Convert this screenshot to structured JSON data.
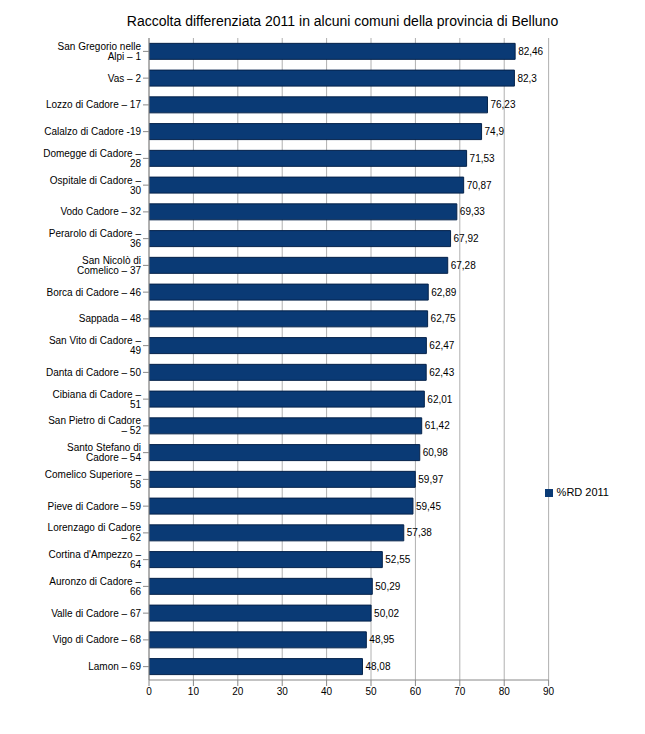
{
  "chart_data": {
    "type": "bar",
    "title": "Raccolta differenziata 2011 in alcuni comuni della provincia di Belluno",
    "orientation": "horizontal",
    "categories": [
      "San Gregorio nelle Alpi – 1",
      "Vas – 2",
      "Lozzo di Cadore – 17",
      "Calalzo di Cadore -19",
      "Domegge di Cadore – 28",
      "Ospitale di Cadore – 30",
      "Vodo Cadore – 32",
      "Perarolo di Cadore – 36",
      "San Nicolò di Comelico – 37",
      "Borca di Cadore – 46",
      "Sappada – 48",
      "San Vito di Cadore – 49",
      "Danta di Cadore – 50",
      "Cibiana di Cadore – 51",
      "San Pietro di Cadore – 52",
      "Santo Stefano di Cadore – 54",
      "Comelico Superiore – 58",
      "Pieve di Cadore – 59",
      "Lorenzago di Cadore – 62",
      "Cortina d'Ampezzo – 64",
      "Auronzo di Cadore – 66",
      "Valle di Cadore – 67",
      "Vigo di Cadore – 68",
      "Lamon – 69"
    ],
    "series": [
      {
        "name": "%RD 2011",
        "color": "#0a3a75",
        "values": [
          82.46,
          82.3,
          76.23,
          74.9,
          71.53,
          70.87,
          69.33,
          67.92,
          67.28,
          62.89,
          62.75,
          62.47,
          62.43,
          62.01,
          61.42,
          60.98,
          59.97,
          59.45,
          57.38,
          52.55,
          50.29,
          50.02,
          48.95,
          48.08
        ],
        "value_labels": [
          "82,46",
          "82,3",
          "76,23",
          "74,9",
          "71,53",
          "70,87",
          "69,33",
          "67,92",
          "67,28",
          "62,89",
          "62,75",
          "62,47",
          "62,43",
          "62,01",
          "61,42",
          "60,98",
          "59,97",
          "59,45",
          "57,38",
          "52,55",
          "50,29",
          "50,02",
          "48,95",
          "48,08"
        ]
      }
    ],
    "xlim": [
      0,
      90
    ],
    "xticks": [
      0,
      10,
      20,
      30,
      40,
      50,
      60,
      70,
      80,
      90
    ],
    "grid": true,
    "data_labels": true,
    "legend": "right"
  }
}
